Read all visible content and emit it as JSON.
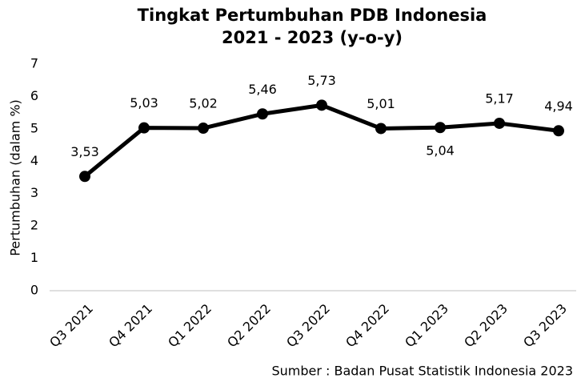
{
  "chart_data": {
    "type": "line",
    "title": [
      "Tingkat Pertumbuhan PDB Indonesia",
      "2021 - 2023 (y-o-y)"
    ],
    "ylabel": "Pertumbuhan (dalam %)",
    "annotation": "Sumber : Badan Pusat Statistik Indonesia 2023",
    "categories": [
      "Q3 2021",
      "Q4 2021",
      "Q1 2022",
      "Q2 2022",
      "Q3 2022",
      "Q4 2022",
      "Q1 2023",
      "Q2 2023",
      "Q3 2023"
    ],
    "values": [
      3.53,
      5.03,
      5.02,
      5.46,
      5.73,
      5.01,
      5.04,
      5.17,
      4.94
    ],
    "value_labels": [
      "3,53",
      "5,03",
      "5,02",
      "5,46",
      "5,73",
      "5,01",
      "5,04",
      "5,17",
      "4,94"
    ],
    "color": "#000000",
    "ylim": [
      0,
      7
    ],
    "yticks": [
      0,
      1,
      2,
      3,
      4,
      5,
      6,
      7
    ],
    "grid": false
  }
}
